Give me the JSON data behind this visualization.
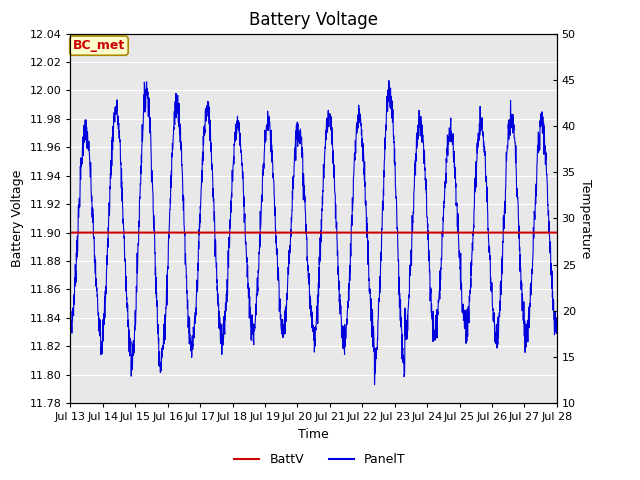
{
  "title": "Battery Voltage",
  "xlabel": "Time",
  "ylabel_left": "Battery Voltage",
  "ylabel_right": "Temperature",
  "annotation": "BC_met",
  "ylim_left": [
    11.78,
    12.04
  ],
  "ylim_right": [
    10,
    50
  ],
  "yticks_left": [
    11.78,
    11.8,
    11.82,
    11.84,
    11.86,
    11.88,
    11.9,
    11.92,
    11.94,
    11.96,
    11.98,
    12.0,
    12.02,
    12.04
  ],
  "yticks_right": [
    10,
    15,
    20,
    25,
    30,
    35,
    40,
    45,
    50
  ],
  "batt_v": 11.9,
  "batt_color": "#cc0000",
  "panel_color": "#0000dd",
  "background_color": "#e8e8e8",
  "grid_color": "#ffffff",
  "num_days": 16,
  "xtick_labels": [
    "Jul 13",
    "Jul 14",
    "Jul 15",
    "Jul 16",
    "Jul 17",
    "Jul 18",
    "Jul 19",
    "Jul 20",
    "Jul 21",
    "Jul 22",
    "Jul 23",
    "Jul 24",
    "Jul 25",
    "Jul 26",
    "Jul 27",
    "Jul 28"
  ],
  "title_fontsize": 12,
  "label_fontsize": 9,
  "tick_fontsize": 8,
  "annotation_fontsize": 9
}
